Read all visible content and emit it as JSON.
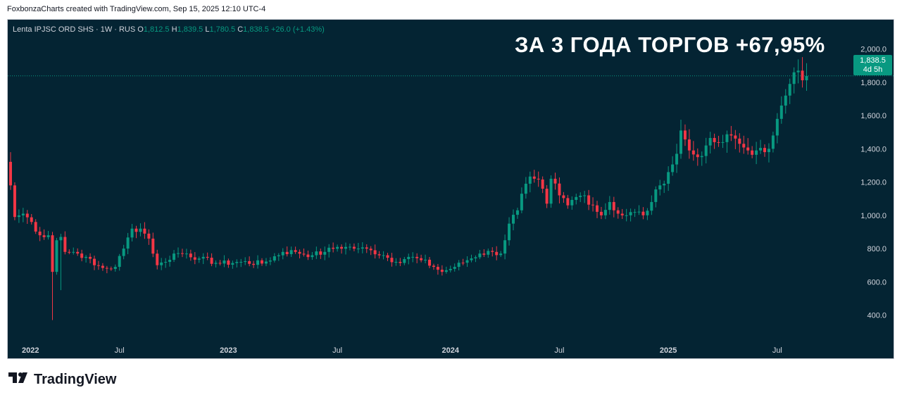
{
  "caption": "FoxbonzaCharts created with TradingView.com, Sep 15, 2025 12:10 UTC-4",
  "legend": {
    "symbol": "Lenta IPJSC ORD SHS · 1W · RUS",
    "open_label": "O",
    "open": "1,812.5",
    "high_label": "H",
    "high": "1,839.5",
    "low_label": "L",
    "low": "1,780.5",
    "close_label": "C",
    "close": "1,838.5",
    "change": "+26.0 (+1.43%)"
  },
  "headline": "ЗА 3 ГОДА ТОРГОВ +67,95%",
  "price_tag": {
    "price": "1,838.5",
    "countdown": "4d 5h"
  },
  "brand": {
    "name": "TradingView",
    "logo_icon": "tradingview-logo-icon"
  },
  "colors": {
    "background": "#042433",
    "up": "#089981",
    "down": "#f23645",
    "text": "#d1d4dc"
  },
  "chart_data": {
    "type": "candlestick",
    "interval": "1W",
    "ylim": [
      250,
      2100
    ],
    "y_ticks": [
      {
        "value": 2000,
        "label": "2,000.0"
      },
      {
        "value": 1800,
        "label": "1,800.0"
      },
      {
        "value": 1600,
        "label": "1,600.0"
      },
      {
        "value": 1400,
        "label": "1,400.0"
      },
      {
        "value": 1200,
        "label": "1,200.0"
      },
      {
        "value": 1000,
        "label": "1,000.0"
      },
      {
        "value": 800,
        "label": "800.0"
      },
      {
        "value": 600,
        "label": "600.0"
      },
      {
        "value": 400,
        "label": "400.0"
      }
    ],
    "x_ticks": [
      {
        "label": "2022",
        "bold": true,
        "index": 0
      },
      {
        "label": "Jul",
        "bold": false,
        "index": 26
      },
      {
        "label": "2023",
        "bold": true,
        "index": 52
      },
      {
        "label": "Jul",
        "bold": false,
        "index": 78
      },
      {
        "label": "2024",
        "bold": true,
        "index": 105
      },
      {
        "label": "Jul",
        "bold": false,
        "index": 131
      },
      {
        "label": "2025",
        "bold": true,
        "index": 157
      },
      {
        "label": "Jul",
        "bold": false,
        "index": 183
      }
    ],
    "last_price": 1838.5,
    "keypoints": [
      [
        0,
        1180
      ],
      [
        1,
        990
      ],
      [
        3,
        1010
      ],
      [
        5,
        960
      ],
      [
        7,
        880
      ],
      [
        9,
        880
      ],
      [
        10,
        660
      ],
      [
        11,
        850
      ],
      [
        12,
        870
      ],
      [
        13,
        780
      ],
      [
        15,
        780
      ],
      [
        18,
        750
      ],
      [
        20,
        700
      ],
      [
        23,
        680
      ],
      [
        25,
        690
      ],
      [
        27,
        800
      ],
      [
        29,
        920
      ],
      [
        31,
        920
      ],
      [
        33,
        860
      ],
      [
        35,
        700
      ],
      [
        37,
        720
      ],
      [
        39,
        770
      ],
      [
        42,
        770
      ],
      [
        45,
        740
      ],
      [
        50,
        710
      ],
      [
        55,
        720
      ],
      [
        60,
        710
      ],
      [
        65,
        780
      ],
      [
        68,
        780
      ],
      [
        72,
        760
      ],
      [
        75,
        780
      ],
      [
        78,
        810
      ],
      [
        80,
        810
      ],
      [
        83,
        800
      ],
      [
        86,
        790
      ],
      [
        89,
        760
      ],
      [
        92,
        720
      ],
      [
        95,
        750
      ],
      [
        98,
        730
      ],
      [
        101,
        690
      ],
      [
        103,
        660
      ],
      [
        106,
        690
      ],
      [
        109,
        730
      ],
      [
        112,
        770
      ],
      [
        115,
        780
      ],
      [
        117,
        770
      ],
      [
        119,
        950
      ],
      [
        121,
        1030
      ],
      [
        123,
        1190
      ],
      [
        125,
        1220
      ],
      [
        127,
        1160
      ],
      [
        128,
        1070
      ],
      [
        129,
        1220
      ],
      [
        131,
        1120
      ],
      [
        133,
        1060
      ],
      [
        135,
        1110
      ],
      [
        137,
        1120
      ],
      [
        139,
        1060
      ],
      [
        141,
        1000
      ],
      [
        143,
        1080
      ],
      [
        145,
        1010
      ],
      [
        147,
        1000
      ],
      [
        149,
        1020
      ],
      [
        151,
        1000
      ],
      [
        153,
        1080
      ],
      [
        155,
        1180
      ],
      [
        157,
        1260
      ],
      [
        159,
        1370
      ],
      [
        160,
        1510
      ],
      [
        162,
        1390
      ],
      [
        164,
        1350
      ],
      [
        166,
        1420
      ],
      [
        168,
        1440
      ],
      [
        170,
        1440
      ],
      [
        172,
        1480
      ],
      [
        174,
        1430
      ],
      [
        176,
        1390
      ],
      [
        178,
        1390
      ],
      [
        180,
        1380
      ],
      [
        181,
        1400
      ],
      [
        182,
        1480
      ],
      [
        183,
        1580
      ],
      [
        184,
        1660
      ],
      [
        185,
        1720
      ],
      [
        186,
        1790
      ],
      [
        187,
        1860
      ],
      [
        188,
        1870
      ],
      [
        189,
        1812
      ],
      [
        190,
        1838.5
      ]
    ]
  }
}
